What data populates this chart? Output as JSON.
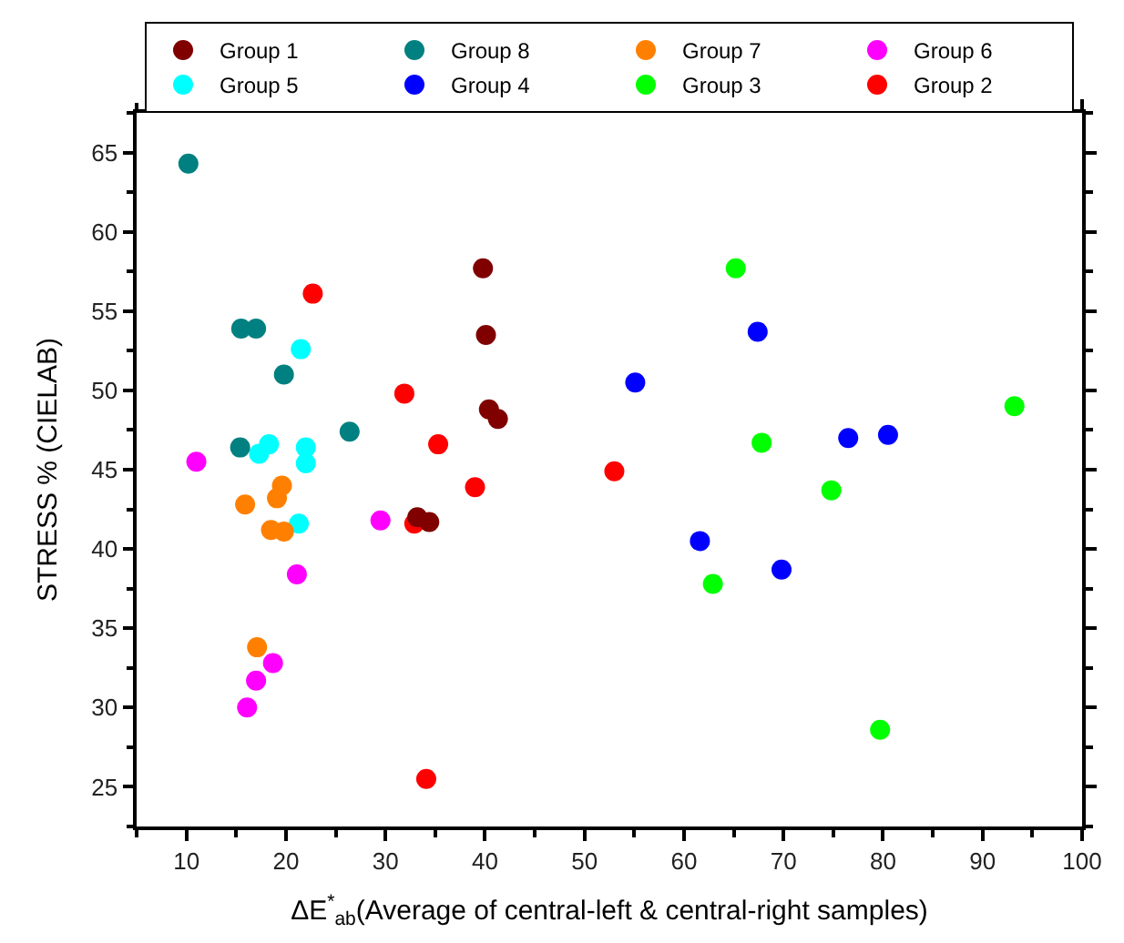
{
  "chart_data": {
    "type": "scatter",
    "xlabel": "ΔE$^{*}$$_{ab}$(Average of central-left & central-right samples)",
    "ylabel": "STRESS % (CIELAB)",
    "xlim": [
      5,
      100
    ],
    "xticks": [
      10,
      20,
      30,
      40,
      50,
      60,
      70,
      80,
      90,
      100
    ],
    "ylim": [
      22.5,
      67.5
    ],
    "yticks": [
      25,
      30,
      35,
      40,
      45,
      50,
      55,
      60,
      65
    ],
    "grid": false,
    "legend": "top",
    "marker": "circle",
    "series": [
      {
        "name": "Group 1",
        "color": "#800000",
        "x": [
          33.2,
          34.4,
          39.8,
          40.1,
          40.4,
          41.3
        ],
        "values": [
          42.0,
          41.7,
          57.7,
          53.5,
          48.8,
          48.2
        ]
      },
      {
        "name": "Group 8",
        "color": "#008080",
        "x": [
          10.2,
          15.5,
          17.0,
          19.8,
          26.4,
          15.4
        ],
        "values": [
          64.3,
          53.9,
          53.9,
          51.0,
          47.4,
          46.4
        ]
      },
      {
        "name": "Group 7",
        "color": "#ff8000",
        "x": [
          19.6,
          19.1,
          15.9,
          18.5,
          19.8,
          17.1
        ],
        "values": [
          44.0,
          43.2,
          42.8,
          41.2,
          41.1,
          33.8
        ]
      },
      {
        "name": "Group 6",
        "color": "#ff00ff",
        "x": [
          11.0,
          29.5,
          21.1,
          18.7,
          17.0,
          16.1
        ],
        "values": [
          45.5,
          41.8,
          38.4,
          32.8,
          31.7,
          30.0
        ]
      },
      {
        "name": "Group 5",
        "color": "#00ffff",
        "x": [
          21.5,
          18.3,
          17.3,
          22.0,
          22.0,
          21.3
        ],
        "values": [
          52.6,
          46.6,
          46.0,
          46.4,
          45.4,
          41.6
        ]
      },
      {
        "name": "Group 4",
        "color": "#0000ff",
        "x": [
          55.1,
          67.4,
          61.6,
          69.8,
          76.5,
          80.5
        ],
        "values": [
          50.5,
          53.7,
          40.5,
          38.7,
          47.0,
          47.2
        ]
      },
      {
        "name": "Group 3",
        "color": "#00ff00",
        "x": [
          65.2,
          67.8,
          62.9,
          74.8,
          93.2,
          79.7
        ],
        "values": [
          57.7,
          46.7,
          37.8,
          43.7,
          49.0,
          28.6
        ]
      },
      {
        "name": "Group 2",
        "color": "#ff0000",
        "x": [
          22.7,
          31.9,
          35.3,
          32.9,
          34.1,
          39.0,
          53.0
        ],
        "values": [
          56.1,
          49.8,
          46.6,
          41.6,
          25.5,
          43.9,
          44.9
        ]
      }
    ]
  }
}
